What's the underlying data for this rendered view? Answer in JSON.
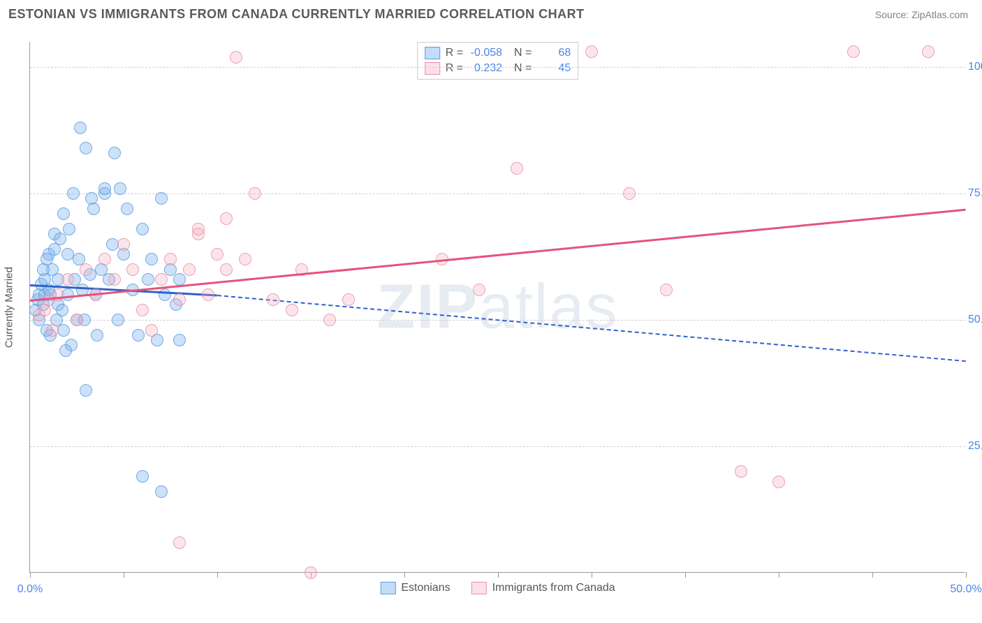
{
  "header": {
    "title": "ESTONIAN VS IMMIGRANTS FROM CANADA CURRENTLY MARRIED CORRELATION CHART",
    "source": "Source: ZipAtlas.com"
  },
  "chart": {
    "type": "scatter",
    "y_axis_title": "Currently Married",
    "xlim": [
      0,
      50
    ],
    "ylim": [
      0,
      105
    ],
    "x_ticks": [
      0,
      5,
      10,
      15,
      20,
      25,
      30,
      35,
      40,
      45,
      50
    ],
    "x_tick_labels": {
      "0": "0.0%",
      "50": "50.0%"
    },
    "y_gridlines": [
      25,
      50,
      75,
      100
    ],
    "y_tick_labels": {
      "25": "25.0%",
      "50": "50.0%",
      "75": "75.0%",
      "100": "100.0%"
    },
    "grid_color": "#d0d0d0",
    "axis_color": "#9a9a9a",
    "background_color": "#ffffff",
    "watermark": "ZIPatlas",
    "series": [
      {
        "name": "Estonians",
        "color_fill": "rgba(127,178,240,0.45)",
        "color_stroke": "#5a9de0",
        "trend_color": "#2f62c9",
        "trend": {
          "x1": 0,
          "y1": 57,
          "x2": 10,
          "y2": 55,
          "x2_dash": 50,
          "y2_dash": 42
        },
        "R": "-0.058",
        "N": "68",
        "points": [
          [
            0.3,
            52
          ],
          [
            0.4,
            54
          ],
          [
            0.5,
            55
          ],
          [
            0.5,
            50
          ],
          [
            0.6,
            57
          ],
          [
            0.7,
            53
          ],
          [
            0.8,
            55
          ],
          [
            0.8,
            58
          ],
          [
            0.9,
            48
          ],
          [
            1.0,
            56
          ],
          [
            1.0,
            63
          ],
          [
            1.1,
            55
          ],
          [
            1.2,
            60
          ],
          [
            1.3,
            64
          ],
          [
            1.3,
            67
          ],
          [
            1.5,
            53
          ],
          [
            1.5,
            58
          ],
          [
            1.6,
            66
          ],
          [
            1.7,
            52
          ],
          [
            1.8,
            71
          ],
          [
            1.8,
            48
          ],
          [
            2.0,
            63
          ],
          [
            2.0,
            55
          ],
          [
            2.1,
            68
          ],
          [
            2.2,
            45
          ],
          [
            2.3,
            75
          ],
          [
            2.4,
            58
          ],
          [
            2.5,
            50
          ],
          [
            2.6,
            62
          ],
          [
            2.7,
            88
          ],
          [
            2.8,
            56
          ],
          [
            3.0,
            84
          ],
          [
            3.0,
            36
          ],
          [
            3.2,
            59
          ],
          [
            3.4,
            72
          ],
          [
            3.5,
            55
          ],
          [
            3.6,
            47
          ],
          [
            3.8,
            60
          ],
          [
            4.0,
            75
          ],
          [
            4.0,
            76
          ],
          [
            4.2,
            58
          ],
          [
            4.4,
            65
          ],
          [
            4.5,
            83
          ],
          [
            4.7,
            50
          ],
          [
            5.0,
            63
          ],
          [
            5.2,
            72
          ],
          [
            5.5,
            56
          ],
          [
            5.8,
            47
          ],
          [
            6.0,
            68
          ],
          [
            6.0,
            19
          ],
          [
            6.3,
            58
          ],
          [
            6.5,
            62
          ],
          [
            6.8,
            46
          ],
          [
            7.0,
            74
          ],
          [
            7.2,
            55
          ],
          [
            7.5,
            60
          ],
          [
            7.8,
            53
          ],
          [
            8.0,
            58
          ],
          [
            7.0,
            16
          ],
          [
            8.0,
            46
          ],
          [
            4.8,
            76
          ],
          [
            3.3,
            74
          ],
          [
            2.9,
            50
          ],
          [
            1.4,
            50
          ],
          [
            1.9,
            44
          ],
          [
            0.9,
            62
          ],
          [
            1.1,
            47
          ],
          [
            0.7,
            60
          ]
        ]
      },
      {
        "name": "Immigrants from Canada",
        "color_fill": "rgba(244,170,190,0.35)",
        "color_stroke": "#e890a8",
        "trend_color": "#e6527a",
        "trend": {
          "x1": 0,
          "y1": 54,
          "x2": 50,
          "y2": 72
        },
        "R": "0.232",
        "N": "45",
        "points": [
          [
            0.5,
            51
          ],
          [
            0.8,
            52
          ],
          [
            1.0,
            54
          ],
          [
            1.2,
            48
          ],
          [
            1.5,
            55
          ],
          [
            2.0,
            58
          ],
          [
            2.5,
            50
          ],
          [
            3.0,
            60
          ],
          [
            3.5,
            55
          ],
          [
            4.0,
            62
          ],
          [
            4.5,
            58
          ],
          [
            5.0,
            65
          ],
          [
            5.5,
            60
          ],
          [
            6.0,
            52
          ],
          [
            6.5,
            48
          ],
          [
            7.0,
            58
          ],
          [
            7.5,
            62
          ],
          [
            8.0,
            54
          ],
          [
            8.5,
            60
          ],
          [
            9.0,
            67
          ],
          [
            9.5,
            55
          ],
          [
            10.0,
            63
          ],
          [
            10.5,
            70
          ],
          [
            11.0,
            102
          ],
          [
            12.0,
            75
          ],
          [
            13.0,
            54
          ],
          [
            14.0,
            52
          ],
          [
            14.5,
            60
          ],
          [
            15.0,
            0
          ],
          [
            16.0,
            50
          ],
          [
            17.0,
            54
          ],
          [
            22.0,
            62
          ],
          [
            24.0,
            56
          ],
          [
            26.0,
            80
          ],
          [
            30.0,
            103
          ],
          [
            32.0,
            75
          ],
          [
            34.0,
            56
          ],
          [
            38.0,
            20
          ],
          [
            40.0,
            18
          ],
          [
            44.0,
            103
          ],
          [
            48.0,
            103
          ],
          [
            8.0,
            6
          ],
          [
            9.0,
            68
          ],
          [
            10.5,
            60
          ],
          [
            11.5,
            62
          ]
        ]
      }
    ],
    "bottom_legend": [
      {
        "label": "Estonians",
        "swatch": "blue"
      },
      {
        "label": "Immigrants from Canada",
        "swatch": "pink"
      }
    ]
  }
}
